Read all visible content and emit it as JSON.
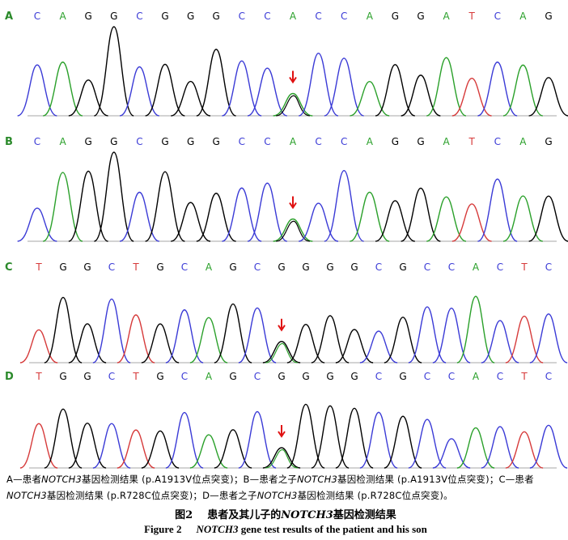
{
  "panels": [
    {
      "label": "A",
      "sequence": [
        "C",
        "A",
        "G",
        "G",
        "C",
        "G",
        "G",
        "G",
        "C",
        "C",
        "A",
        "C",
        "C",
        "A",
        "G",
        "G",
        "A",
        "T",
        "C",
        "A",
        "G"
      ],
      "arrow_base_index": 10
    },
    {
      "label": "B",
      "sequence": [
        "C",
        "A",
        "G",
        "G",
        "C",
        "G",
        "G",
        "G",
        "C",
        "C",
        "A",
        "C",
        "C",
        "A",
        "G",
        "G",
        "A",
        "T",
        "C",
        "A",
        "G"
      ],
      "arrow_base_index": 10
    },
    {
      "label": "C",
      "sequence": [
        "T",
        "G",
        "G",
        "C",
        "T",
        "G",
        "C",
        "A",
        "G",
        "C",
        "G",
        "G",
        "G",
        "G",
        "C",
        "G",
        "C",
        "C",
        "A",
        "C",
        "T",
        "C"
      ],
      "arrow_base_index": 10
    },
    {
      "label": "D",
      "sequence": [
        "T",
        "G",
        "G",
        "C",
        "T",
        "G",
        "C",
        "A",
        "G",
        "C",
        "G",
        "G",
        "G",
        "G",
        "C",
        "G",
        "C",
        "C",
        "A",
        "C",
        "T",
        "C"
      ],
      "arrow_base_index": 10
    }
  ],
  "base_colors": {
    "A": "#2aa02a",
    "C": "#3a3ad6",
    "G": "#000000",
    "T": "#d63a3a"
  },
  "panel_label_color": "#2b8a2b",
  "arrow_color": "#e01010",
  "caption": {
    "a_pre": "A—患者",
    "gene1": "NOTCH3",
    "a_post": "基因检测结果 (p.A1913V位点突变)；B—患者之子",
    "gene2": "NOTCH3",
    "b_post": "基因检测结果 (p.A1913V位点突变)；C—患者",
    "gene3": "NOTCH3",
    "c_post": "基因检测结果 (p.R728C位点突变)；D—患者之子",
    "gene4": "NOTCH3",
    "d_post": "基因检测结果 (p.R728C位点突变)。"
  },
  "title_cn": {
    "num": "图2",
    "pre": "患者及其儿子的",
    "gene": "NOTCH3",
    "post": "基因检测结果"
  },
  "title_en": {
    "num": "Figure 2",
    "gene": "NOTCH3",
    "post": "gene test results of the patient and his son"
  }
}
